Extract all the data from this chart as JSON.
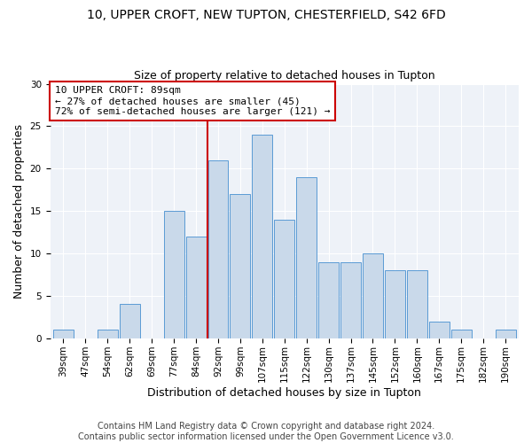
{
  "title": "10, UPPER CROFT, NEW TUPTON, CHESTERFIELD, S42 6FD",
  "subtitle": "Size of property relative to detached houses in Tupton",
  "xlabel": "Distribution of detached houses by size in Tupton",
  "ylabel": "Number of detached properties",
  "bar_labels": [
    "39sqm",
    "47sqm",
    "54sqm",
    "62sqm",
    "69sqm",
    "77sqm",
    "84sqm",
    "92sqm",
    "99sqm",
    "107sqm",
    "115sqm",
    "122sqm",
    "130sqm",
    "137sqm",
    "145sqm",
    "152sqm",
    "160sqm",
    "167sqm",
    "175sqm",
    "182sqm",
    "190sqm"
  ],
  "bar_values": [
    1,
    0,
    1,
    4,
    0,
    15,
    12,
    21,
    17,
    24,
    14,
    19,
    9,
    9,
    10,
    8,
    8,
    2,
    1,
    0,
    1
  ],
  "bar_color": "#c9d9ea",
  "bar_edge_color": "#5b9bd5",
  "vline_color": "#cc0000",
  "vline_x_index": 7,
  "annotation_text": "10 UPPER CROFT: 89sqm\n← 27% of detached houses are smaller (45)\n72% of semi-detached houses are larger (121) →",
  "annotation_box_color": "#ffffff",
  "annotation_box_edge_color": "#cc0000",
  "ylim": [
    0,
    30
  ],
  "yticks": [
    0,
    5,
    10,
    15,
    20,
    25,
    30
  ],
  "footer": "Contains HM Land Registry data © Crown copyright and database right 2024.\nContains public sector information licensed under the Open Government Licence v3.0.",
  "bg_color": "#ffffff",
  "plot_bg_color": "#eef2f8",
  "title_fontsize": 10,
  "subtitle_fontsize": 9,
  "xlabel_fontsize": 9,
  "ylabel_fontsize": 9,
  "tick_fontsize": 7.5,
  "annotation_fontsize": 8,
  "footer_fontsize": 7
}
